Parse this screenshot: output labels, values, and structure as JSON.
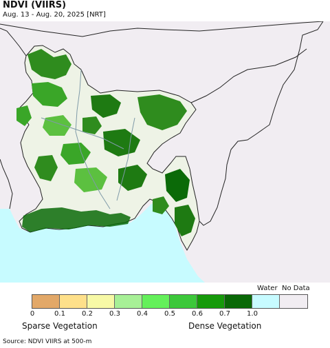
{
  "header": {
    "title": "NDVI (VIIRS)",
    "subtitle": "Aug. 13 - Aug. 20, 2025 [NRT]"
  },
  "map": {
    "land_color": "#f1edf2",
    "sea_color": "#c7fbff",
    "border_color": "#222222",
    "vegetation_colors": [
      "#2f8c1e",
      "#3aa628",
      "#1e7a12",
      "#5cc040",
      "#0b6a08"
    ]
  },
  "legend": {
    "water_label": "Water",
    "nodata_label": "No Data",
    "swatches": [
      {
        "color": "#e2a868"
      },
      {
        "color": "#fee08a"
      },
      {
        "color": "#f7f9a6"
      },
      {
        "color": "#a7f096"
      },
      {
        "color": "#64f05a"
      },
      {
        "color": "#3cc83a"
      },
      {
        "color": "#169a0a"
      },
      {
        "color": "#096806"
      },
      {
        "color": "#c7fbff"
      },
      {
        "color": "#f1edf2"
      }
    ],
    "ticks": [
      "0",
      "0.1",
      "0.2",
      "0.3",
      "0.4",
      "0.5",
      "0.6",
      "0.7",
      "1.0"
    ],
    "sparse_label": "Sparse Vegetation",
    "dense_label": "Dense Vegetation"
  },
  "footer": {
    "source": "Source: NDVI VIIRS at 500-m"
  }
}
